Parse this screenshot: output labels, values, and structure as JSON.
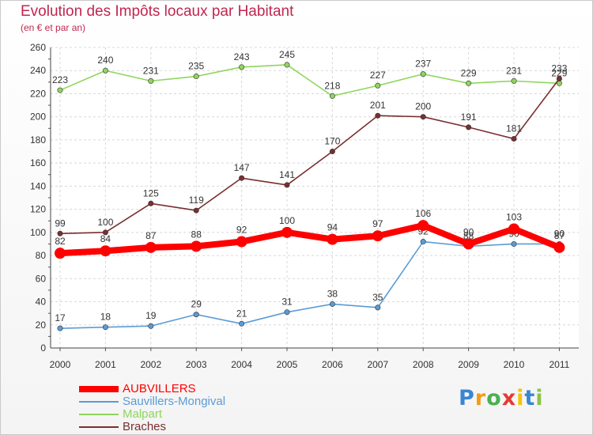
{
  "chart_data": {
    "type": "line",
    "title": "Evolution des Impôts locaux par Habitant",
    "subtitle": "(en € et par an)",
    "xlabel": "",
    "ylabel": "",
    "x": [
      "2000",
      "2001",
      "2002",
      "2003",
      "2004",
      "2005",
      "2006",
      "2007",
      "2008",
      "2009",
      "2010",
      "2011"
    ],
    "ylim": [
      0,
      260
    ],
    "yticks": [
      "0",
      "20",
      "40",
      "60",
      "80",
      "100",
      "120",
      "140",
      "160",
      "180",
      "200",
      "220",
      "240",
      "260"
    ],
    "grid": true,
    "legend_position": "bottom-left",
    "series": [
      {
        "name": "Malpart",
        "color": "#8ed65c",
        "values": [
          223,
          240,
          231,
          235,
          243,
          245,
          218,
          227,
          237,
          229,
          231,
          229
        ]
      },
      {
        "name": "Braches",
        "color": "#7a2f2f",
        "values": [
          99,
          100,
          125,
          119,
          147,
          141,
          170,
          201,
          200,
          191,
          181,
          233
        ]
      },
      {
        "name": "Sauvillers-Mongival",
        "color": "#5b9bd5",
        "values": [
          17,
          18,
          19,
          29,
          21,
          31,
          38,
          35,
          92,
          88,
          90,
          90
        ]
      },
      {
        "name": "AUBVILLERS",
        "color": "#ff0000",
        "values": [
          82,
          84,
          87,
          88,
          92,
          100,
          94,
          97,
          106,
          90,
          103,
          87
        ]
      }
    ],
    "legend_order": [
      "AUBVILLERS",
      "Sauvillers-Mongival",
      "Malpart",
      "Braches"
    ]
  },
  "brand": {
    "letters": [
      "P",
      "r",
      "o",
      "x",
      "i",
      "t",
      "i"
    ],
    "colors": [
      "#3a86d1",
      "#f39c12",
      "#4caf50",
      "#e53935",
      "#f5c400",
      "#3a86d1",
      "#8bc34a"
    ]
  }
}
